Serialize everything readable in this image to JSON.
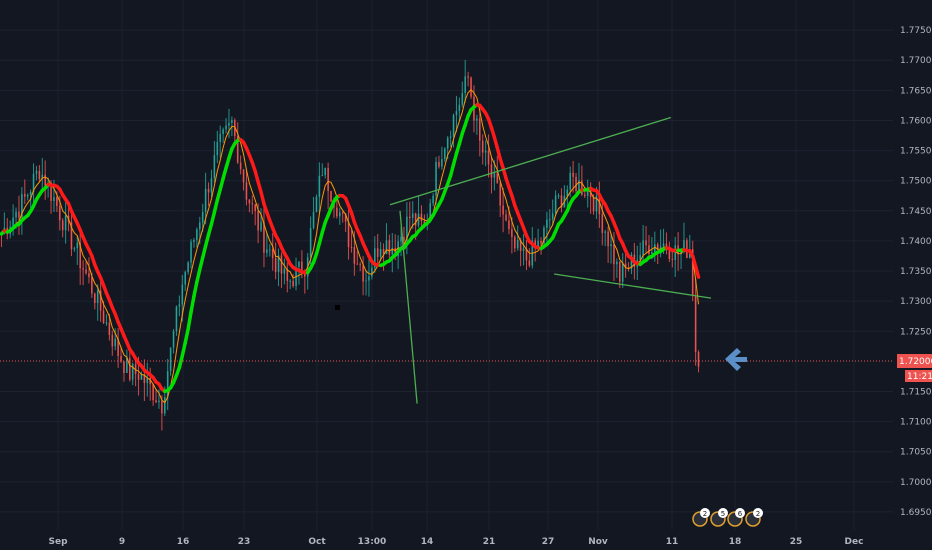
{
  "chart_data": {
    "type": "candlestick",
    "instrument_axis": "price",
    "ylim": [
      1.692,
      1.78
    ],
    "y_ticks": [
      "1.77500",
      "1.77000",
      "1.76500",
      "1.76000",
      "1.75500",
      "1.75000",
      "1.74500",
      "1.74000",
      "1.73500",
      "1.73000",
      "1.72500",
      "1.71500",
      "1.71000",
      "1.70500",
      "1.70000",
      "1.69500"
    ],
    "x_ticks": [
      "Sep",
      "9",
      "16",
      "23",
      "Oct",
      "13:00",
      "14",
      "21",
      "27",
      "Nov",
      "11",
      "18",
      "25",
      "Dec"
    ],
    "last_price": "1.72006",
    "countdown": "11:21",
    "candles_start": 1.7412,
    "candles_len": 240,
    "colors": {
      "background": "#131722",
      "grid": "#1e2230",
      "up": "#26a69a",
      "down": "#ef5350",
      "ma_fast": "#ff9800",
      "ma_slow_up": "#00e000",
      "ma_slow_down": "#ff1a1a",
      "trendline": "#4caf50",
      "price_line": "#ef5350",
      "arrow": "#5b8fc7"
    },
    "path_keypoints": [
      [
        0,
        1.7412
      ],
      [
        8,
        1.747
      ],
      [
        13,
        1.752
      ],
      [
        18,
        1.747
      ],
      [
        25,
        1.739
      ],
      [
        32,
        1.731
      ],
      [
        40,
        1.7215
      ],
      [
        44,
        1.718
      ],
      [
        47,
        1.718
      ],
      [
        52,
        1.715
      ],
      [
        55,
        1.713
      ],
      [
        62,
        1.733
      ],
      [
        68,
        1.744
      ],
      [
        74,
        1.755
      ],
      [
        79,
        1.7595
      ],
      [
        84,
        1.748
      ],
      [
        90,
        1.74
      ],
      [
        98,
        1.733
      ],
      [
        104,
        1.736
      ],
      [
        110,
        1.752
      ],
      [
        115,
        1.746
      ],
      [
        120,
        1.739
      ],
      [
        125,
        1.734
      ],
      [
        130,
        1.74
      ],
      [
        135,
        1.739
      ],
      [
        140,
        1.744
      ],
      [
        145,
        1.742
      ],
      [
        150,
        1.754
      ],
      [
        155,
        1.7605
      ],
      [
        160,
        1.767
      ],
      [
        164,
        1.756
      ],
      [
        170,
        1.748
      ],
      [
        175,
        1.739
      ],
      [
        180,
        1.737
      ],
      [
        185,
        1.74
      ],
      [
        190,
        1.746
      ],
      [
        196,
        1.75
      ],
      [
        202,
        1.748
      ],
      [
        207,
        1.742
      ],
      [
        212,
        1.734
      ],
      [
        217,
        1.737
      ],
      [
        222,
        1.7395
      ],
      [
        227,
        1.7395
      ],
      [
        232,
        1.738
      ],
      [
        236,
        1.739
      ],
      [
        237,
        1.732
      ],
      [
        238,
        1.722
      ],
      [
        240,
        1.72
      ]
    ],
    "trendlines": [
      {
        "x1": 230,
        "y1": 1.7605,
        "x2": 390,
        "y2": 1.746
      },
      {
        "x1": 143,
        "y1": 1.713,
        "x2": 400,
        "y2": 1.745
      },
      {
        "x1": 190,
        "y1": 1.7345,
        "x2": 711,
        "y2": 1.7305
      }
    ],
    "ma_colors": [
      "#ff9800",
      "#00e000",
      "#ff1a1a"
    ]
  },
  "events": [
    "2",
    "5",
    "6",
    "2"
  ]
}
